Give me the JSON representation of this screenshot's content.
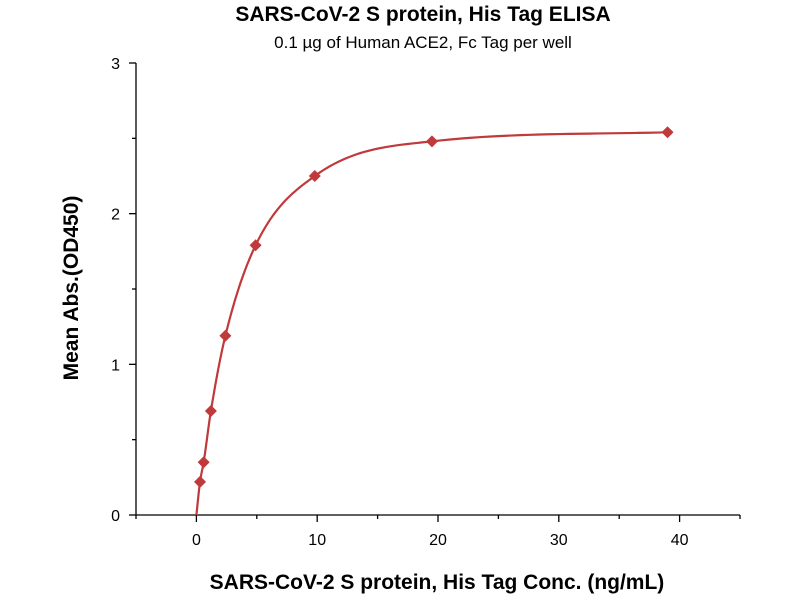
{
  "chart_data": {
    "type": "scatter",
    "title": "SARS-CoV-2 S protein, His Tag ELISA",
    "subtitle": "0.1 µg of Human ACE2, Fc Tag per well",
    "xlabel": "SARS-CoV-2 S protein, His Tag Conc. (ng/mL)",
    "ylabel": "Mean Abs.(OD450)",
    "xlim": [
      -5,
      45
    ],
    "ylim": [
      0,
      3
    ],
    "xticks": [
      0,
      10,
      20,
      30,
      40
    ],
    "xtick_labels": [
      "0",
      "10",
      "20",
      "30",
      "40"
    ],
    "yticks": [
      0,
      1,
      2,
      3
    ],
    "ytick_labels": [
      "0",
      "1",
      "2",
      "3"
    ],
    "grid": false,
    "series": [
      {
        "x": [
          0.3,
          0.6,
          1.2,
          2.4,
          4.9,
          9.8,
          19.5,
          39
        ],
        "y": [
          0.22,
          0.35,
          0.69,
          1.19,
          1.79,
          2.25,
          2.48,
          2.54
        ]
      }
    ],
    "fit_curve": true,
    "colors": {
      "marker": "#c0393b",
      "curve": "#c0393b"
    }
  }
}
